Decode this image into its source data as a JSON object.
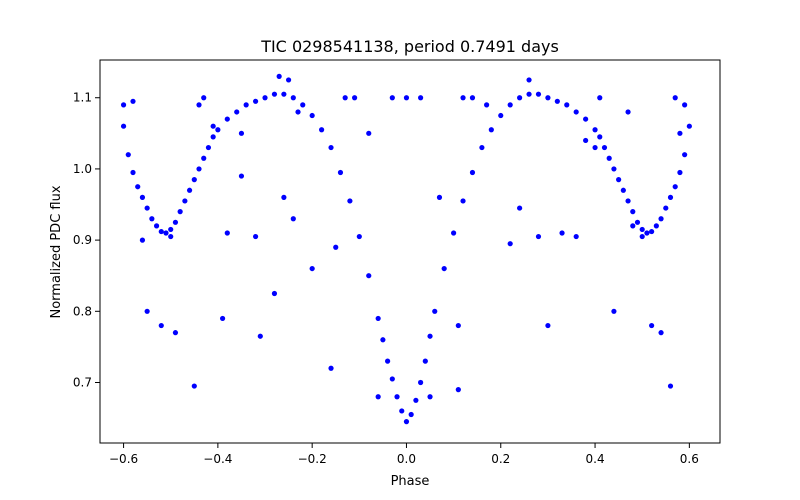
{
  "chart_data": {
    "type": "scatter",
    "title": "TIC 0298541138, period 0.7491 days",
    "xlabel": "Phase",
    "ylabel": "Normalized PDC flux",
    "xlim": [
      -0.65,
      0.665
    ],
    "ylim": [
      0.615,
      1.153
    ],
    "xticks": [
      -0.6,
      -0.4,
      -0.2,
      0.0,
      0.2,
      0.4,
      0.6
    ],
    "xtick_labels": [
      "−0.6",
      "−0.4",
      "−0.2",
      "0.0",
      "0.2",
      "0.4",
      "0.6"
    ],
    "yticks": [
      0.7,
      0.8,
      0.9,
      1.0,
      1.1
    ],
    "ytick_labels": [
      "0.7",
      "0.8",
      "0.9",
      "1.0",
      "1.1"
    ],
    "grid": false,
    "marker_color": "#0000ff",
    "series": [
      {
        "name": "",
        "points": [
          [
            -0.6,
            1.06
          ],
          [
            -0.59,
            1.02
          ],
          [
            -0.58,
            0.995
          ],
          [
            -0.57,
            0.975
          ],
          [
            -0.56,
            0.96
          ],
          [
            -0.55,
            0.945
          ],
          [
            -0.54,
            0.93
          ],
          [
            -0.53,
            0.92
          ],
          [
            -0.52,
            0.912
          ],
          [
            -0.51,
            0.91
          ],
          [
            -0.5,
            0.915
          ],
          [
            -0.49,
            0.925
          ],
          [
            -0.48,
            0.94
          ],
          [
            -0.47,
            0.955
          ],
          [
            -0.46,
            0.97
          ],
          [
            -0.45,
            0.985
          ],
          [
            -0.44,
            1.0
          ],
          [
            -0.43,
            1.015
          ],
          [
            -0.42,
            1.03
          ],
          [
            -0.41,
            1.045
          ],
          [
            -0.4,
            1.055
          ],
          [
            -0.38,
            1.07
          ],
          [
            -0.36,
            1.08
          ],
          [
            -0.34,
            1.09
          ],
          [
            -0.32,
            1.095
          ],
          [
            -0.3,
            1.1
          ],
          [
            -0.28,
            1.105
          ],
          [
            -0.26,
            1.105
          ],
          [
            -0.24,
            1.1
          ],
          [
            -0.22,
            1.09
          ],
          [
            -0.2,
            1.075
          ],
          [
            -0.18,
            1.055
          ],
          [
            -0.16,
            1.03
          ],
          [
            -0.14,
            0.995
          ],
          [
            -0.12,
            0.955
          ],
          [
            -0.1,
            0.905
          ],
          [
            -0.08,
            0.85
          ],
          [
            -0.06,
            0.79
          ],
          [
            -0.05,
            0.76
          ],
          [
            -0.04,
            0.73
          ],
          [
            -0.03,
            0.705
          ],
          [
            -0.02,
            0.68
          ],
          [
            -0.01,
            0.66
          ],
          [
            0.0,
            0.645
          ],
          [
            0.01,
            0.655
          ],
          [
            0.02,
            0.675
          ],
          [
            0.03,
            0.7
          ],
          [
            0.04,
            0.73
          ],
          [
            0.05,
            0.765
          ],
          [
            0.06,
            0.8
          ],
          [
            0.08,
            0.86
          ],
          [
            0.1,
            0.91
          ],
          [
            0.12,
            0.955
          ],
          [
            0.14,
            0.995
          ],
          [
            0.16,
            1.03
          ],
          [
            0.18,
            1.055
          ],
          [
            0.2,
            1.075
          ],
          [
            0.22,
            1.09
          ],
          [
            0.24,
            1.1
          ],
          [
            0.26,
            1.105
          ],
          [
            0.28,
            1.105
          ],
          [
            0.3,
            1.1
          ],
          [
            0.32,
            1.095
          ],
          [
            0.34,
            1.09
          ],
          [
            0.36,
            1.08
          ],
          [
            0.38,
            1.07
          ],
          [
            0.4,
            1.055
          ],
          [
            0.41,
            1.045
          ],
          [
            0.42,
            1.03
          ],
          [
            0.43,
            1.015
          ],
          [
            0.44,
            1.0
          ],
          [
            0.45,
            0.985
          ],
          [
            0.46,
            0.97
          ],
          [
            0.47,
            0.955
          ],
          [
            0.48,
            0.94
          ],
          [
            0.49,
            0.925
          ],
          [
            0.5,
            0.915
          ],
          [
            0.51,
            0.91
          ],
          [
            0.52,
            0.912
          ],
          [
            0.53,
            0.92
          ],
          [
            0.54,
            0.93
          ],
          [
            0.55,
            0.945
          ],
          [
            0.56,
            0.96
          ],
          [
            0.57,
            0.975
          ],
          [
            0.58,
            0.995
          ],
          [
            0.59,
            1.02
          ],
          [
            0.6,
            1.06
          ],
          [
            -0.6,
            1.09
          ],
          [
            -0.58,
            1.095
          ],
          [
            -0.56,
            0.9
          ],
          [
            -0.55,
            0.8
          ],
          [
            -0.52,
            0.78
          ],
          [
            -0.49,
            0.77
          ],
          [
            -0.45,
            0.695
          ],
          [
            -0.44,
            1.09
          ],
          [
            -0.43,
            1.1
          ],
          [
            -0.41,
            1.06
          ],
          [
            -0.39,
            0.79
          ],
          [
            -0.38,
            0.91
          ],
          [
            -0.35,
            0.99
          ],
          [
            -0.32,
            0.905
          ],
          [
            -0.31,
            0.765
          ],
          [
            -0.28,
            0.825
          ],
          [
            -0.26,
            0.96
          ],
          [
            -0.24,
            0.93
          ],
          [
            -0.2,
            0.86
          ],
          [
            -0.16,
            0.72
          ],
          [
            -0.15,
            0.89
          ],
          [
            -0.13,
            1.1
          ],
          [
            -0.11,
            1.1
          ],
          [
            -0.08,
            1.05
          ],
          [
            -0.06,
            0.68
          ],
          [
            -0.03,
            1.1
          ],
          [
            0.0,
            1.1
          ],
          [
            0.03,
            1.1
          ],
          [
            0.05,
            0.68
          ],
          [
            0.07,
            0.96
          ],
          [
            0.11,
            0.69
          ],
          [
            0.11,
            0.78
          ],
          [
            0.12,
            1.1
          ],
          [
            0.14,
            1.1
          ],
          [
            0.17,
            1.09
          ],
          [
            0.22,
            0.895
          ],
          [
            0.24,
            0.945
          ],
          [
            0.28,
            0.905
          ],
          [
            0.3,
            0.78
          ],
          [
            0.33,
            0.91
          ],
          [
            0.36,
            0.905
          ],
          [
            0.38,
            1.04
          ],
          [
            0.41,
            1.1
          ],
          [
            0.44,
            0.8
          ],
          [
            0.47,
            1.08
          ],
          [
            0.48,
            0.92
          ],
          [
            0.52,
            0.78
          ],
          [
            0.54,
            0.77
          ],
          [
            0.56,
            0.695
          ],
          [
            0.57,
            1.1
          ],
          [
            0.59,
            1.09
          ],
          [
            0.58,
            1.05
          ],
          [
            -0.27,
            1.13
          ],
          [
            -0.25,
            1.125
          ],
          [
            0.26,
            1.125
          ],
          [
            -0.35,
            1.05
          ],
          [
            -0.23,
            1.08
          ],
          [
            0.4,
            1.03
          ],
          [
            -0.5,
            0.905
          ],
          [
            0.5,
            0.905
          ]
        ]
      }
    ]
  }
}
